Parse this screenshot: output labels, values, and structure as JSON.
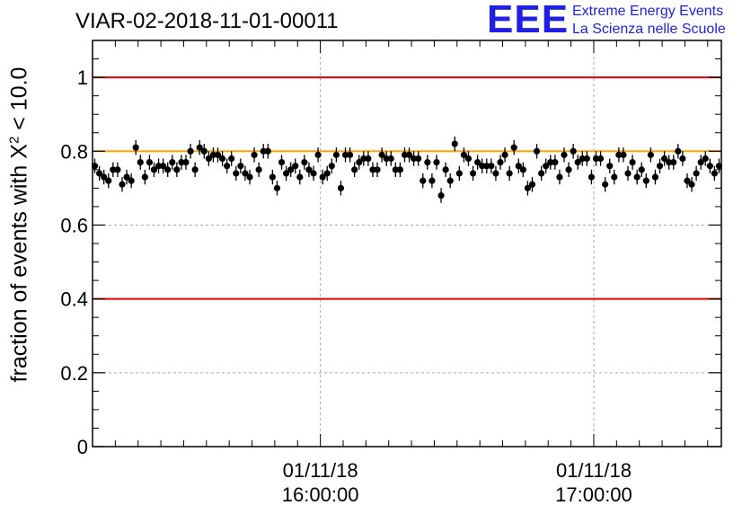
{
  "title": "VIAR-02-2018-11-01-00011",
  "logo": {
    "mark": "EEE",
    "line1": "Extreme Energy Events",
    "line2": "La Scienza nelle Scuole",
    "color": "#1f1fe6"
  },
  "chart_data": {
    "type": "scatter",
    "title": "VIAR-02-2018-11-01-00011",
    "ylabel_prefix": "fraction of events with X",
    "ylabel_sup": "2",
    "ylabel_suffix": " < 10.0",
    "xlabel": "",
    "x_unit": "minutes after 01/11/18 15:10:00",
    "xlim": [
      0,
      138
    ],
    "ylim": [
      0,
      1.1
    ],
    "yticks": [
      0,
      0.2,
      0.4,
      0.6,
      0.8,
      1
    ],
    "ytick_labels": [
      "0",
      "0.2",
      "0.4",
      "0.6",
      "0.8",
      "1"
    ],
    "xticks": [
      {
        "x": 50,
        "date": "01/11/18",
        "time": "16:00:00"
      },
      {
        "x": 110,
        "date": "01/11/18",
        "time": "17:00:00"
      }
    ],
    "grid": true,
    "reference_lines": [
      {
        "y": 1.0,
        "color": "#e00000"
      },
      {
        "y": 0.8,
        "color": "#ffa500"
      },
      {
        "y": 0.4,
        "color": "#e00000"
      }
    ],
    "series": [
      {
        "marker_color": "#000000",
        "error": 0.02,
        "x": [
          0.5,
          1.5,
          2.5,
          3.5,
          4.5,
          5.5,
          6.5,
          7.5,
          8.5,
          9.5,
          10.5,
          11.5,
          12.5,
          13.5,
          14.5,
          15.5,
          16.5,
          17.5,
          18.5,
          19.5,
          20.5,
          21.5,
          22.5,
          23.5,
          24.5,
          25.5,
          26.5,
          27.5,
          28.5,
          29.5,
          30.5,
          31.5,
          32.5,
          33.5,
          34.5,
          35.5,
          36.5,
          37.5,
          38.5,
          39.5,
          40.5,
          41.5,
          42.5,
          43.5,
          44.5,
          45.5,
          46.5,
          47.5,
          48.5,
          49.5,
          50.5,
          51.5,
          52.5,
          53.5,
          54.5,
          55.5,
          56.5,
          57.5,
          58.5,
          59.5,
          60.5,
          61.5,
          62.5,
          63.5,
          64.5,
          65.5,
          66.5,
          67.5,
          68.5,
          69.5,
          70.5,
          71.5,
          72.5,
          73.5,
          74.5,
          75.5,
          76.5,
          77.5,
          78.5,
          79.5,
          80.5,
          81.5,
          82.5,
          83.5,
          84.5,
          85.5,
          86.5,
          87.5,
          88.5,
          89.5,
          90.5,
          91.5,
          92.5,
          93.5,
          94.5,
          95.5,
          96.5,
          97.5,
          98.5,
          99.5,
          100.5,
          101.5,
          102.5,
          103.5,
          104.5,
          105.5,
          106.5,
          107.5,
          108.5,
          109.5,
          110.5,
          111.5,
          112.5,
          113.5,
          114.5,
          115.5,
          116.5,
          117.5,
          118.5,
          119.5,
          120.5,
          121.5,
          122.5,
          123.5,
          124.5,
          125.5,
          126.5,
          127.5,
          128.5,
          129.5,
          130.5,
          131.5,
          132.5,
          133.5,
          134.5,
          135.5,
          136.5,
          137.5
        ],
        "y": [
          0.76,
          0.74,
          0.73,
          0.72,
          0.75,
          0.75,
          0.71,
          0.73,
          0.72,
          0.81,
          0.77,
          0.73,
          0.77,
          0.75,
          0.76,
          0.76,
          0.75,
          0.77,
          0.75,
          0.77,
          0.77,
          0.8,
          0.75,
          0.81,
          0.8,
          0.78,
          0.79,
          0.79,
          0.78,
          0.76,
          0.78,
          0.74,
          0.76,
          0.74,
          0.73,
          0.79,
          0.75,
          0.8,
          0.8,
          0.73,
          0.7,
          0.77,
          0.74,
          0.75,
          0.76,
          0.73,
          0.77,
          0.75,
          0.74,
          0.79,
          0.73,
          0.74,
          0.76,
          0.79,
          0.7,
          0.79,
          0.79,
          0.75,
          0.77,
          0.78,
          0.78,
          0.75,
          0.75,
          0.79,
          0.78,
          0.78,
          0.75,
          0.75,
          0.79,
          0.79,
          0.78,
          0.78,
          0.72,
          0.77,
          0.72,
          0.77,
          0.68,
          0.75,
          0.72,
          0.82,
          0.74,
          0.79,
          0.78,
          0.74,
          0.77,
          0.76,
          0.76,
          0.76,
          0.74,
          0.77,
          0.79,
          0.74,
          0.81,
          0.76,
          0.75,
          0.7,
          0.71,
          0.8,
          0.74,
          0.76,
          0.77,
          0.77,
          0.73,
          0.79,
          0.75,
          0.8,
          0.77,
          0.78,
          0.78,
          0.73,
          0.78,
          0.78,
          0.71,
          0.76,
          0.73,
          0.79,
          0.79,
          0.74,
          0.77,
          0.73,
          0.75,
          0.72,
          0.79,
          0.73,
          0.76,
          0.78,
          0.77,
          0.77,
          0.8,
          0.78,
          0.72,
          0.71,
          0.74,
          0.77,
          0.78,
          0.76,
          0.74,
          0.76
        ]
      }
    ]
  }
}
